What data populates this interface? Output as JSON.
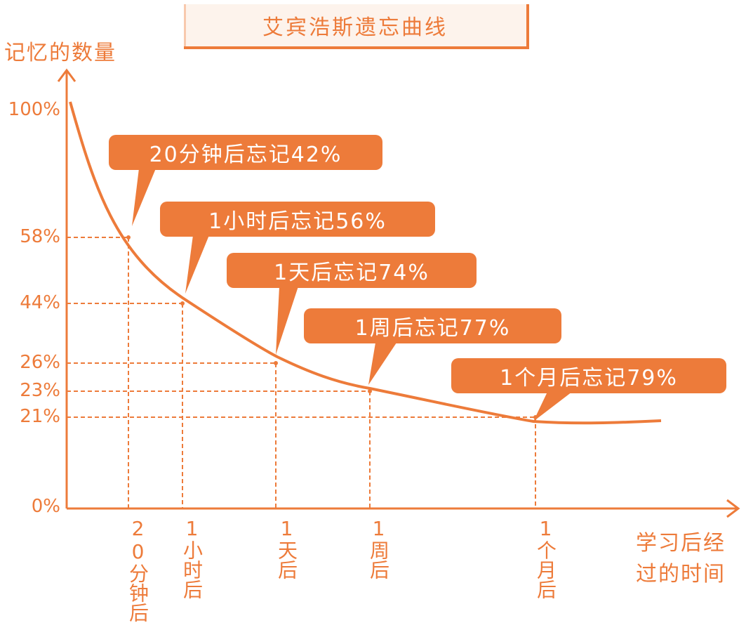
{
  "chart_data": {
    "type": "line",
    "title": "艾宾浩斯遗忘曲线",
    "ylabel": "记忆的数量",
    "xlabel": "学习后经过的时间",
    "ylim": [
      0,
      100
    ],
    "y_ticks": [
      "100%",
      "58%",
      "44%",
      "26%",
      "23%",
      "21%",
      "0%"
    ],
    "y_tick_values": [
      100,
      58,
      44,
      26,
      23,
      21,
      0
    ],
    "x_ticks": [
      "20分钟后",
      "1小时后",
      "1天后",
      "1周后",
      "1个月后"
    ],
    "points": [
      {
        "x": "20分钟后",
        "y": 58
      },
      {
        "x": "1小时后",
        "y": 44
      },
      {
        "x": "1天后",
        "y": 26
      },
      {
        "x": "1周后",
        "y": 23
      },
      {
        "x": "1个月后",
        "y": 21
      }
    ],
    "annotations": [
      "20分钟后忘记42%",
      "1小时后忘记56%",
      "1天后忘记74%",
      "1周后忘记77%",
      "1个月后忘记79%"
    ],
    "grid": false,
    "color": "#ed7b3a"
  }
}
